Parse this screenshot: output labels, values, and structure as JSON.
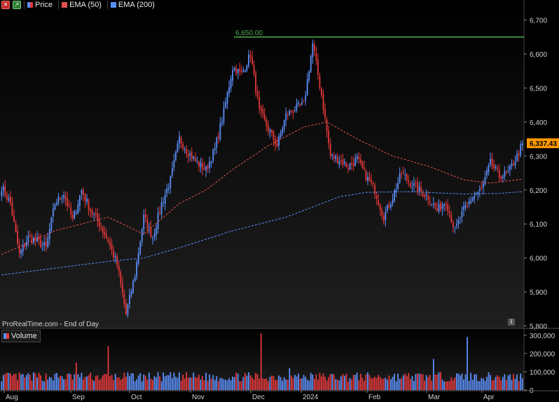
{
  "toolbar": {
    "close_icon": "close-icon",
    "maximize_icon": "arrow-up-right-icon"
  },
  "legend": {
    "price_label": "Price",
    "ema50_label": "EMA (50)",
    "ema200_label": "EMA (200)",
    "volume_label": "Volume"
  },
  "footer": {
    "source": "ProRealTime.com - End of Day",
    "info_label": "i"
  },
  "colors": {
    "up": "#5b8ff9",
    "down": "#e5383b",
    "ema50": "#e05050",
    "ema200": "#5b8ff9",
    "resistance": "#4caf50",
    "price_badge_bg": "#ff9800",
    "background": "#000000"
  },
  "chart_data": [
    {
      "type": "candlestick",
      "resistance_line": {
        "value": 6650,
        "label": "6,650.00"
      },
      "last_price": {
        "value": 6337.43,
        "label": "6,337.43"
      },
      "y_ticks": [
        5800,
        5900,
        6000,
        6100,
        6200,
        6300,
        6400,
        6500,
        6600,
        6700
      ],
      "y_tick_labels": [
        "5,800",
        "5,900",
        "6,000",
        "6,100",
        "6,200",
        "6,300",
        "6,400",
        "6,500",
        "6,600",
        "6,700"
      ],
      "ylim": [
        5795,
        6730
      ],
      "x_labels": [
        "Aug",
        "Sep",
        "Oct",
        "Nov",
        "Dec",
        "2024",
        "Feb",
        "Mar",
        "Apr"
      ],
      "anchors_close": [
        [
          0,
          6210
        ],
        [
          5,
          6160
        ],
        [
          10,
          6010
        ],
        [
          15,
          6060
        ],
        [
          20,
          6050
        ],
        [
          25,
          6030
        ],
        [
          30,
          6160
        ],
        [
          35,
          6190
        ],
        [
          40,
          6110
        ],
        [
          45,
          6200
        ],
        [
          50,
          6140
        ],
        [
          55,
          6100
        ],
        [
          60,
          6050
        ],
        [
          65,
          5980
        ],
        [
          70,
          5835
        ],
        [
          75,
          5950
        ],
        [
          80,
          6120
        ],
        [
          85,
          6060
        ],
        [
          90,
          6160
        ],
        [
          95,
          6230
        ],
        [
          100,
          6350
        ],
        [
          105,
          6310
        ],
        [
          110,
          6280
        ],
        [
          115,
          6260
        ],
        [
          120,
          6320
        ],
        [
          125,
          6430
        ],
        [
          130,
          6560
        ],
        [
          135,
          6540
        ],
        [
          140,
          6600
        ],
        [
          145,
          6430
        ],
        [
          150,
          6380
        ],
        [
          155,
          6330
        ],
        [
          160,
          6420
        ],
        [
          165,
          6440
        ],
        [
          170,
          6450
        ],
        [
          175,
          6630
        ],
        [
          180,
          6480
        ],
        [
          185,
          6300
        ],
        [
          190,
          6290
        ],
        [
          195,
          6270
        ],
        [
          200,
          6290
        ],
        [
          205,
          6240
        ],
        [
          210,
          6200
        ],
        [
          215,
          6120
        ],
        [
          220,
          6180
        ],
        [
          225,
          6250
        ],
        [
          230,
          6220
        ],
        [
          235,
          6200
        ],
        [
          240,
          6180
        ],
        [
          245,
          6140
        ],
        [
          250,
          6170
        ],
        [
          255,
          6080
        ],
        [
          260,
          6140
        ],
        [
          265,
          6180
        ],
        [
          270,
          6200
        ],
        [
          275,
          6280
        ],
        [
          280,
          6240
        ],
        [
          285,
          6250
        ],
        [
          290,
          6300
        ],
        [
          293,
          6337
        ]
      ],
      "ema50_anchors": [
        [
          0,
          6010
        ],
        [
          30,
          6080
        ],
        [
          60,
          6120
        ],
        [
          80,
          6070
        ],
        [
          100,
          6160
        ],
        [
          115,
          6200
        ],
        [
          130,
          6260
        ],
        [
          150,
          6330
        ],
        [
          170,
          6385
        ],
        [
          183,
          6400
        ],
        [
          200,
          6350
        ],
        [
          220,
          6300
        ],
        [
          240,
          6270
        ],
        [
          260,
          6230
        ],
        [
          275,
          6220
        ],
        [
          290,
          6230
        ],
        [
          293,
          6232
        ]
      ],
      "ema200_anchors": [
        [
          0,
          5950
        ],
        [
          30,
          5970
        ],
        [
          60,
          5990
        ],
        [
          80,
          6000
        ],
        [
          100,
          6030
        ],
        [
          130,
          6080
        ],
        [
          160,
          6120
        ],
        [
          190,
          6180
        ],
        [
          205,
          6193
        ],
        [
          230,
          6195
        ],
        [
          260,
          6188
        ],
        [
          280,
          6190
        ],
        [
          293,
          6195
        ]
      ],
      "candle_count": 294
    },
    {
      "type": "bar",
      "title": "Volume",
      "y_ticks": [
        0,
        100000,
        200000,
        300000
      ],
      "y_tick_labels": [
        "0",
        "100,000",
        "200,000",
        "300,000"
      ],
      "ylim": [
        0,
        330000
      ],
      "spikes": [
        [
          42,
          150000
        ],
        [
          60,
          240000
        ],
        [
          146,
          310000
        ],
        [
          162,
          120000
        ],
        [
          187,
          85000
        ],
        [
          243,
          170000
        ],
        [
          262,
          290000
        ]
      ],
      "base_volume": 85000
    }
  ]
}
